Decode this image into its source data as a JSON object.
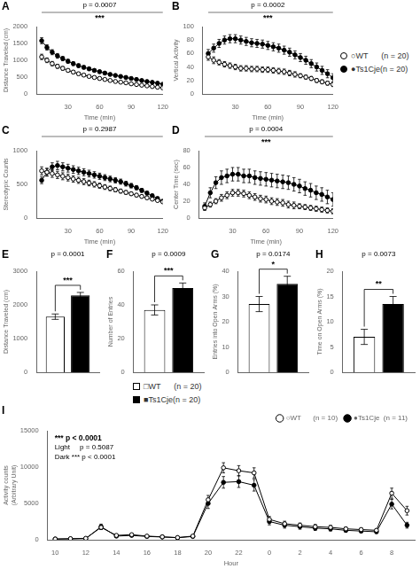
{
  "chart_data": [
    {
      "type": "line",
      "title": "A",
      "xlabel": "Time (min)",
      "ylabel": "Distance Traveled (cm)",
      "x": [
        5,
        10,
        15,
        20,
        25,
        30,
        35,
        40,
        45,
        50,
        55,
        60,
        65,
        70,
        75,
        80,
        85,
        90,
        95,
        100,
        105,
        110,
        115,
        120
      ],
      "xlim": [
        0,
        120
      ],
      "xticks": [
        30,
        60,
        90,
        120
      ],
      "ylim": [
        0,
        2000
      ],
      "yticks": [
        0,
        500,
        1000,
        1500,
        2000
      ],
      "grid": false,
      "legend": false,
      "series": [
        {
          "color": "black",
          "marker": "open_circle",
          "line_style": "solid",
          "values": [
            1100,
            1000,
            900,
            820,
            760,
            700,
            650,
            600,
            560,
            520,
            490,
            460,
            430,
            400,
            370,
            350,
            330,
            300,
            280,
            260,
            240,
            220,
            200,
            180
          ],
          "errors": [
            80,
            70,
            65,
            60,
            55,
            50,
            48,
            45,
            43,
            40,
            38,
            36,
            34,
            32,
            30,
            28,
            27,
            26,
            25,
            24,
            23,
            22,
            21,
            20
          ]
        },
        {
          "color": "black",
          "marker": "circle",
          "line_style": "solid",
          "values": [
            1580,
            1380,
            1240,
            1130,
            1050,
            970,
            900,
            840,
            790,
            745,
            700,
            660,
            620,
            580,
            550,
            520,
            490,
            460,
            430,
            400,
            370,
            345,
            320,
            290
          ],
          "errors": [
            90,
            80,
            75,
            70,
            65,
            60,
            58,
            55,
            52,
            50,
            48,
            46,
            44,
            42,
            40,
            38,
            36,
            34,
            32,
            30,
            28,
            26,
            24,
            22
          ]
        }
      ],
      "annotations": [
        "p = 0.0007",
        "***"
      ]
    },
    {
      "type": "line",
      "title": "B",
      "xlabel": "Time (min)",
      "ylabel": "Vertical Activity",
      "x": [
        5,
        10,
        15,
        20,
        25,
        30,
        35,
        40,
        45,
        50,
        55,
        60,
        65,
        70,
        75,
        80,
        85,
        90,
        95,
        100,
        105,
        110,
        115,
        120
      ],
      "xlim": [
        0,
        120
      ],
      "xticks": [
        30,
        60,
        90,
        120
      ],
      "ylim": [
        0,
        100
      ],
      "yticks": [
        0,
        20,
        40,
        60,
        80,
        100
      ],
      "grid": false,
      "legend": "right",
      "series": [
        {
          "name": "○WT      (n = 20)",
          "color": "black",
          "marker": "open_circle",
          "line_style": "solid",
          "values": [
            55,
            50,
            47,
            44,
            42,
            40,
            38,
            38,
            37,
            37,
            36,
            36,
            35,
            34,
            33,
            31,
            29,
            27,
            25,
            23,
            20,
            18,
            16,
            14
          ],
          "errors": [
            5,
            5,
            4,
            4,
            4,
            4,
            4,
            4,
            4,
            4,
            4,
            4,
            4,
            4,
            4,
            4,
            4,
            3,
            3,
            3,
            3,
            3,
            3,
            3
          ]
        },
        {
          "name": "●Ts1Cje(n = 20)",
          "color": "black",
          "marker": "circle",
          "line_style": "solid",
          "values": [
            60,
            68,
            75,
            80,
            82,
            82,
            80,
            78,
            76,
            75,
            74,
            72,
            70,
            68,
            65,
            62,
            58,
            54,
            50,
            45,
            40,
            35,
            30,
            24
          ],
          "errors": [
            6,
            6,
            6,
            6,
            6,
            6,
            6,
            6,
            6,
            6,
            6,
            6,
            6,
            6,
            6,
            6,
            6,
            6,
            6,
            6,
            6,
            6,
            6,
            6
          ]
        }
      ],
      "annotations": [
        "p = 0.0002",
        "***"
      ]
    },
    {
      "type": "line",
      "title": "C",
      "xlabel": "Time (min)",
      "ylabel": "Stereotypic Counts",
      "x": [
        5,
        10,
        15,
        20,
        25,
        30,
        35,
        40,
        45,
        50,
        55,
        60,
        65,
        70,
        75,
        80,
        85,
        90,
        95,
        100,
        105,
        110,
        115,
        120
      ],
      "xlim": [
        0,
        120
      ],
      "xticks": [
        30,
        60,
        90,
        120
      ],
      "ylim": [
        0,
        1000
      ],
      "yticks": [
        0,
        500,
        1000
      ],
      "grid": false,
      "legend": false,
      "series": [
        {
          "color": "black",
          "marker": "open_circle",
          "line_style": "solid",
          "values": [
            700,
            680,
            660,
            640,
            620,
            600,
            580,
            560,
            540,
            520,
            500,
            480,
            460,
            440,
            420,
            400,
            380,
            360,
            340,
            320,
            300,
            280,
            260,
            240
          ],
          "errors": [
            60,
            58,
            56,
            54,
            52,
            50,
            48,
            46,
            44,
            42,
            40,
            38,
            36,
            34,
            32,
            30,
            28,
            26,
            24,
            22,
            20,
            18,
            16,
            14
          ]
        },
        {
          "color": "black",
          "marker": "circle",
          "line_style": "solid",
          "values": [
            560,
            680,
            760,
            780,
            760,
            740,
            720,
            700,
            680,
            660,
            640,
            620,
            600,
            580,
            560,
            540,
            510,
            480,
            450,
            410,
            370,
            330,
            290,
            250
          ],
          "errors": [
            50,
            55,
            60,
            62,
            60,
            58,
            56,
            54,
            52,
            50,
            48,
            46,
            44,
            42,
            40,
            38,
            36,
            34,
            32,
            30,
            28,
            26,
            24,
            22
          ]
        }
      ],
      "annotations": [
        "p = 0.2987"
      ]
    },
    {
      "type": "line",
      "title": "D",
      "xlabel": "Time (min)",
      "ylabel": "Center Time (sec)",
      "x": [
        5,
        10,
        15,
        20,
        25,
        30,
        35,
        40,
        45,
        50,
        55,
        60,
        65,
        70,
        75,
        80,
        85,
        90,
        95,
        100,
        105,
        110,
        115,
        120
      ],
      "xlim": [
        0,
        120
      ],
      "xticks": [
        30,
        60,
        90,
        120
      ],
      "ylim": [
        0,
        80
      ],
      "yticks": [
        0,
        20,
        40,
        60,
        80
      ],
      "grid": false,
      "legend": false,
      "series": [
        {
          "color": "black",
          "marker": "open_circle",
          "line_style": "solid",
          "values": [
            12,
            16,
            20,
            24,
            27,
            30,
            30,
            29,
            27,
            25,
            23,
            22,
            20,
            19,
            18,
            16,
            15,
            14,
            13,
            12,
            11,
            10,
            9,
            8
          ],
          "errors": [
            3,
            3,
            3,
            4,
            4,
            4,
            4,
            4,
            4,
            4,
            4,
            4,
            4,
            4,
            4,
            4,
            4,
            3,
            3,
            3,
            3,
            3,
            3,
            3
          ]
        },
        {
          "color": "black",
          "marker": "circle",
          "line_style": "solid",
          "values": [
            14,
            30,
            42,
            48,
            50,
            52,
            52,
            50,
            50,
            48,
            47,
            46,
            45,
            44,
            43,
            42,
            40,
            38,
            35,
            33,
            30,
            28,
            25,
            22
          ],
          "errors": [
            4,
            6,
            7,
            8,
            8,
            8,
            8,
            8,
            8,
            8,
            8,
            8,
            8,
            8,
            8,
            8,
            8,
            8,
            8,
            8,
            8,
            8,
            8,
            8
          ]
        }
      ],
      "annotations": [
        "p = 0.0004",
        "***"
      ]
    },
    {
      "type": "bar",
      "title": "E",
      "ylabel": "Distance Traveled (cm)",
      "categories": [
        null
      ],
      "ylim": [
        0,
        3000
      ],
      "yticks": [
        0,
        1000,
        2000,
        3000
      ],
      "grid": false,
      "legend": "bottom",
      "tick_labels": "y",
      "series": [
        {
          "name": "□WT      (n = 20)",
          "color": "white",
          "values": [
            1650
          ],
          "errors": [
            80
          ]
        },
        {
          "name": "■Ts1Cje(n = 20)",
          "color": "black",
          "values": [
            2280
          ],
          "errors": [
            90
          ]
        }
      ],
      "annotations": [
        "p = 0.0001",
        "***"
      ]
    },
    {
      "type": "bar",
      "title": "F",
      "ylabel": "Number of Entries",
      "categories": [
        null
      ],
      "ylim": [
        0,
        60
      ],
      "yticks": [
        0,
        20,
        40,
        60
      ],
      "grid": false,
      "legend": false,
      "tick_labels": "y",
      "series": [
        {
          "color": "white",
          "values": [
            37
          ],
          "errors": [
            3
          ]
        },
        {
          "color": "black",
          "values": [
            50
          ],
          "errors": [
            3
          ]
        }
      ],
      "annotations": [
        "p = 0.0009",
        "***"
      ]
    },
    {
      "type": "bar",
      "title": "G",
      "ylabel": "Entries into Open Arms (%)",
      "categories": [
        null
      ],
      "ylim": [
        0,
        40
      ],
      "yticks": [
        0,
        10,
        20,
        30,
        40
      ],
      "grid": false,
      "legend": false,
      "tick_labels": "y",
      "series": [
        {
          "color": "white",
          "values": [
            27
          ],
          "errors": [
            3
          ]
        },
        {
          "color": "black",
          "values": [
            35
          ],
          "errors": [
            3
          ]
        }
      ],
      "annotations": [
        "p = 0.0174",
        "*"
      ]
    },
    {
      "type": "bar",
      "title": "H",
      "ylabel": "Time on Open Arms (%)",
      "categories": [
        null
      ],
      "ylim": [
        0,
        20
      ],
      "yticks": [
        0,
        5,
        10,
        15,
        20
      ],
      "grid": false,
      "legend": false,
      "tick_labels": "y",
      "series": [
        {
          "color": "white",
          "values": [
            7
          ],
          "errors": [
            1.5
          ]
        },
        {
          "color": "black",
          "values": [
            13.5
          ],
          "errors": [
            1.5
          ]
        }
      ],
      "annotations": [
        "p = 0.0073",
        "**"
      ]
    },
    {
      "type": "line",
      "title": "I",
      "xlabel": "Hour",
      "ylabel": "Activity counts\n(Arbitrary Unit)",
      "categories": [
        "10",
        null,
        "12",
        null,
        "14",
        null,
        "16",
        null,
        "18",
        null,
        "20",
        null,
        "22",
        null,
        "0",
        null,
        "2",
        null,
        "4",
        null,
        "6",
        null,
        "8",
        null
      ],
      "ylim": [
        0,
        15000
      ],
      "yticks": [
        0,
        5000,
        10000,
        15000
      ],
      "grid": false,
      "legend": "upper right",
      "series": [
        {
          "name": "○WT      (n = 10)",
          "color": "black",
          "marker": "open_circle",
          "line_style": "solid",
          "values": [
            100,
            150,
            200,
            1700,
            600,
            700,
            500,
            400,
            300,
            500,
            5500,
            9900,
            9500,
            9200,
            2800,
            2200,
            2000,
            1800,
            1700,
            1500,
            1400,
            1300,
            6400,
            4000
          ],
          "errors": [
            50,
            60,
            60,
            300,
            100,
            100,
            80,
            70,
            60,
            80,
            600,
            700,
            700,
            700,
            400,
            350,
            300,
            300,
            280,
            250,
            220,
            200,
            700,
            600
          ]
        },
        {
          "name": "●Ts1Cje  (n = 11)",
          "color": "black",
          "marker": "circle",
          "line_style": "solid",
          "values": [
            100,
            120,
            160,
            1800,
            500,
            600,
            450,
            380,
            280,
            450,
            5000,
            7900,
            8000,
            7500,
            2500,
            2000,
            1800,
            1600,
            1500,
            1300,
            1200,
            1100,
            4900,
            2000
          ],
          "errors": [
            50,
            55,
            60,
            350,
            90,
            95,
            75,
            65,
            55,
            75,
            700,
            800,
            800,
            800,
            450,
            400,
            350,
            320,
            300,
            270,
            240,
            220,
            650,
            400
          ]
        }
      ],
      "annotations": [
        "*** p < 0.0001",
        "Light     p = 0.5087",
        "Dark *** p < 0.0001"
      ]
    }
  ]
}
